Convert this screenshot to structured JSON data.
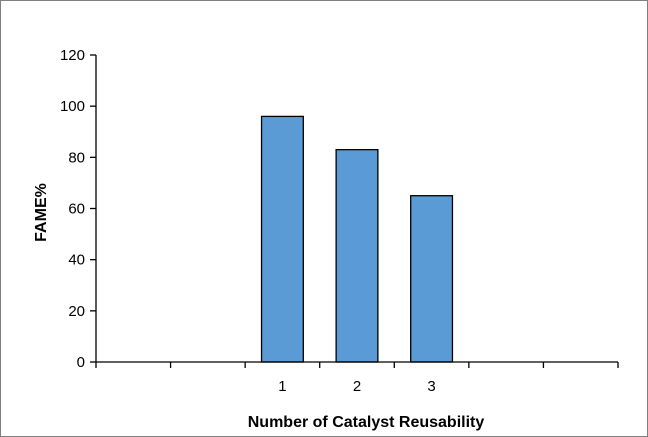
{
  "chart_data": {
    "type": "bar",
    "title": "",
    "xlabel": "Number of Catalyst Reusability",
    "ylabel": "FAME%",
    "categories": [
      "",
      "",
      "1",
      "2",
      "3",
      "",
      ""
    ],
    "values": [
      null,
      null,
      96,
      83,
      65,
      null,
      null
    ],
    "ylim": [
      0,
      120
    ],
    "yticks": [
      0,
      20,
      40,
      60,
      80,
      100,
      120
    ],
    "grid": false,
    "legend": "none",
    "colors": {
      "bar_fill": "#5b9bd5",
      "bar_stroke": "#000000",
      "axis": "#000000"
    }
  }
}
